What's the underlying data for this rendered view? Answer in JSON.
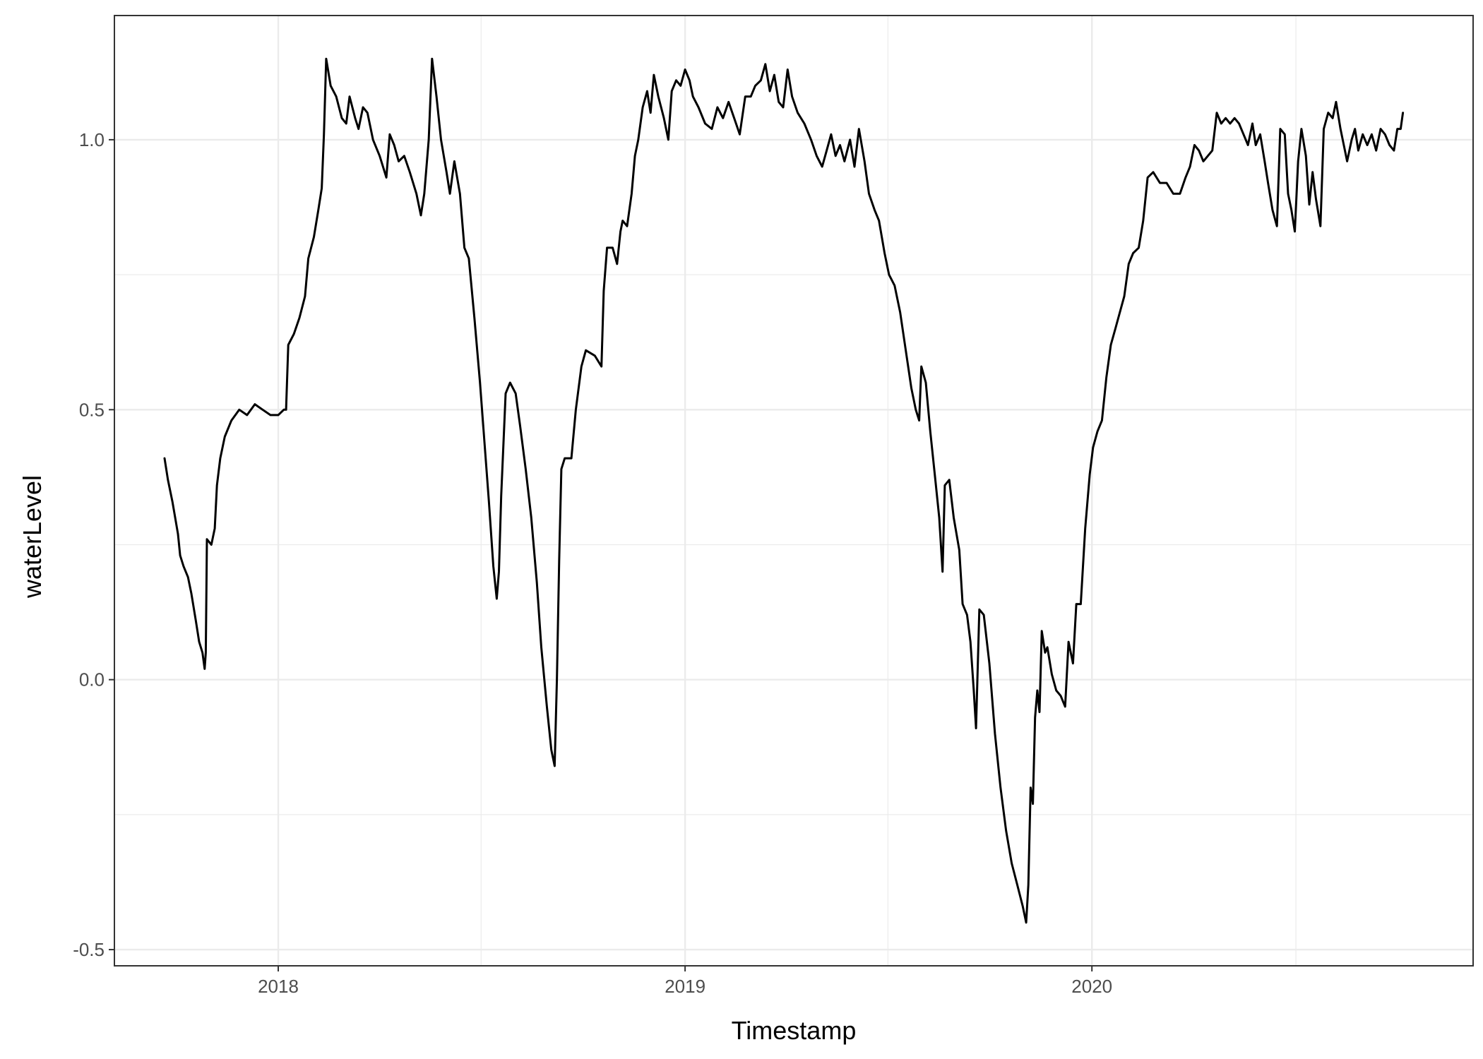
{
  "chart_data": {
    "type": "line",
    "xlabel": "Timestamp",
    "ylabel": "waterLevel",
    "x_ticks": [
      "2018",
      "2019",
      "2020"
    ],
    "y_ticks": [
      "-0.5",
      "0.0",
      "0.5",
      "1.0"
    ],
    "xlim": [
      "2017-08-07",
      "2020-12-08"
    ],
    "ylim": [
      -0.53,
      1.23
    ],
    "grid": true,
    "colors": {
      "line": "#000000",
      "grid": "#ebebeb",
      "border": "#333333"
    },
    "series": [
      {
        "points": [
          [
            "2017-09-21",
            0.41
          ],
          [
            "2017-09-24",
            0.37
          ],
          [
            "2017-09-28",
            0.33
          ],
          [
            "2017-10-03",
            0.27
          ],
          [
            "2017-10-05",
            0.23
          ],
          [
            "2017-10-08",
            0.21
          ],
          [
            "2017-10-12",
            0.19
          ],
          [
            "2017-10-15",
            0.16
          ],
          [
            "2017-10-19",
            0.11
          ],
          [
            "2017-10-22",
            0.07
          ],
          [
            "2017-10-25",
            0.05
          ],
          [
            "2017-10-27",
            0.02
          ],
          [
            "2017-10-28",
            0.05
          ],
          [
            "2017-10-29",
            0.26
          ],
          [
            "2017-11-02",
            0.25
          ],
          [
            "2017-11-05",
            0.28
          ],
          [
            "2017-11-07",
            0.36
          ],
          [
            "2017-11-10",
            0.41
          ],
          [
            "2017-11-14",
            0.45
          ],
          [
            "2017-11-20",
            0.48
          ],
          [
            "2017-11-27",
            0.5
          ],
          [
            "2017-12-04",
            0.49
          ],
          [
            "2017-12-11",
            0.51
          ],
          [
            "2017-12-18",
            0.5
          ],
          [
            "2017-12-25",
            0.49
          ],
          [
            "2018-01-01",
            0.49
          ],
          [
            "2018-01-06",
            0.5
          ],
          [
            "2018-01-08",
            0.5
          ],
          [
            "2018-01-10",
            0.62
          ],
          [
            "2018-01-15",
            0.64
          ],
          [
            "2018-01-20",
            0.67
          ],
          [
            "2018-01-25",
            0.71
          ],
          [
            "2018-01-28",
            0.78
          ],
          [
            "2018-02-02",
            0.82
          ],
          [
            "2018-02-06",
            0.87
          ],
          [
            "2018-02-09",
            0.91
          ],
          [
            "2018-02-11",
            1.01
          ],
          [
            "2018-02-13",
            1.15
          ],
          [
            "2018-02-17",
            1.1
          ],
          [
            "2018-02-22",
            1.08
          ],
          [
            "2018-02-27",
            1.04
          ],
          [
            "2018-03-03",
            1.03
          ],
          [
            "2018-03-06",
            1.08
          ],
          [
            "2018-03-11",
            1.04
          ],
          [
            "2018-03-14",
            1.02
          ],
          [
            "2018-03-18",
            1.06
          ],
          [
            "2018-03-22",
            1.05
          ],
          [
            "2018-03-27",
            1.0
          ],
          [
            "2018-04-02",
            0.97
          ],
          [
            "2018-04-08",
            0.93
          ],
          [
            "2018-04-11",
            1.01
          ],
          [
            "2018-04-15",
            0.99
          ],
          [
            "2018-04-19",
            0.96
          ],
          [
            "2018-04-24",
            0.97
          ],
          [
            "2018-04-29",
            0.94
          ],
          [
            "2018-05-05",
            0.9
          ],
          [
            "2018-05-09",
            0.86
          ],
          [
            "2018-05-12",
            0.9
          ],
          [
            "2018-05-16",
            1.0
          ],
          [
            "2018-05-19",
            1.15
          ],
          [
            "2018-05-23",
            1.08
          ],
          [
            "2018-05-27",
            1.0
          ],
          [
            "2018-06-01",
            0.94
          ],
          [
            "2018-06-04",
            0.9
          ],
          [
            "2018-06-08",
            0.96
          ],
          [
            "2018-06-13",
            0.9
          ],
          [
            "2018-06-17",
            0.8
          ],
          [
            "2018-06-21",
            0.78
          ],
          [
            "2018-06-26",
            0.67
          ],
          [
            "2018-07-01",
            0.55
          ],
          [
            "2018-07-05",
            0.44
          ],
          [
            "2018-07-09",
            0.33
          ],
          [
            "2018-07-13",
            0.21
          ],
          [
            "2018-07-16",
            0.15
          ],
          [
            "2018-07-18",
            0.2
          ],
          [
            "2018-07-20",
            0.34
          ],
          [
            "2018-07-24",
            0.53
          ],
          [
            "2018-07-28",
            0.55
          ],
          [
            "2018-08-02",
            0.53
          ],
          [
            "2018-08-06",
            0.47
          ],
          [
            "2018-08-11",
            0.39
          ],
          [
            "2018-08-16",
            0.3
          ],
          [
            "2018-08-21",
            0.18
          ],
          [
            "2018-08-25",
            0.06
          ],
          [
            "2018-08-30",
            -0.05
          ],
          [
            "2018-09-03",
            -0.13
          ],
          [
            "2018-09-06",
            -0.16
          ],
          [
            "2018-09-08",
            0.0
          ],
          [
            "2018-09-10",
            0.22
          ],
          [
            "2018-09-12",
            0.39
          ],
          [
            "2018-09-15",
            0.41
          ],
          [
            "2018-09-21",
            0.41
          ],
          [
            "2018-09-25",
            0.5
          ],
          [
            "2018-09-30",
            0.58
          ],
          [
            "2018-10-04",
            0.61
          ],
          [
            "2018-10-12",
            0.6
          ],
          [
            "2018-10-18",
            0.58
          ],
          [
            "2018-10-20",
            0.72
          ],
          [
            "2018-10-23",
            0.8
          ],
          [
            "2018-10-28",
            0.8
          ],
          [
            "2018-11-01",
            0.77
          ],
          [
            "2018-11-04",
            0.83
          ],
          [
            "2018-11-06",
            0.85
          ],
          [
            "2018-11-10",
            0.84
          ],
          [
            "2018-11-14",
            0.9
          ],
          [
            "2018-11-17",
            0.97
          ],
          [
            "2018-11-20",
            1.0
          ],
          [
            "2018-11-24",
            1.06
          ],
          [
            "2018-11-28",
            1.09
          ],
          [
            "2018-12-01",
            1.05
          ],
          [
            "2018-12-04",
            1.12
          ],
          [
            "2018-12-08",
            1.08
          ],
          [
            "2018-12-13",
            1.04
          ],
          [
            "2018-12-17",
            1.0
          ],
          [
            "2018-12-20",
            1.09
          ],
          [
            "2018-12-24",
            1.11
          ],
          [
            "2018-12-28",
            1.1
          ],
          [
            "2019-01-01",
            1.13
          ],
          [
            "2019-01-05",
            1.11
          ],
          [
            "2019-01-08",
            1.08
          ],
          [
            "2019-01-13",
            1.06
          ],
          [
            "2019-01-19",
            1.03
          ],
          [
            "2019-01-25",
            1.02
          ],
          [
            "2019-01-30",
            1.06
          ],
          [
            "2019-02-04",
            1.04
          ],
          [
            "2019-02-09",
            1.07
          ],
          [
            "2019-02-14",
            1.04
          ],
          [
            "2019-02-19",
            1.01
          ],
          [
            "2019-02-24",
            1.08
          ],
          [
            "2019-03-01",
            1.08
          ],
          [
            "2019-03-05",
            1.1
          ],
          [
            "2019-03-10",
            1.11
          ],
          [
            "2019-03-14",
            1.14
          ],
          [
            "2019-03-18",
            1.09
          ],
          [
            "2019-03-22",
            1.12
          ],
          [
            "2019-03-26",
            1.07
          ],
          [
            "2019-03-30",
            1.06
          ],
          [
            "2019-04-03",
            1.13
          ],
          [
            "2019-04-07",
            1.08
          ],
          [
            "2019-04-12",
            1.05
          ],
          [
            "2019-04-18",
            1.03
          ],
          [
            "2019-04-24",
            1.0
          ],
          [
            "2019-04-29",
            0.97
          ],
          [
            "2019-05-04",
            0.95
          ],
          [
            "2019-05-08",
            0.98
          ],
          [
            "2019-05-12",
            1.01
          ],
          [
            "2019-05-16",
            0.97
          ],
          [
            "2019-05-20",
            0.99
          ],
          [
            "2019-05-24",
            0.96
          ],
          [
            "2019-05-29",
            1.0
          ],
          [
            "2019-06-02",
            0.95
          ],
          [
            "2019-06-06",
            1.02
          ],
          [
            "2019-06-11",
            0.96
          ],
          [
            "2019-06-15",
            0.9
          ],
          [
            "2019-06-20",
            0.87
          ],
          [
            "2019-06-24",
            0.85
          ],
          [
            "2019-06-29",
            0.79
          ],
          [
            "2019-07-03",
            0.75
          ],
          [
            "2019-07-08",
            0.73
          ],
          [
            "2019-07-13",
            0.68
          ],
          [
            "2019-07-18",
            0.61
          ],
          [
            "2019-07-23",
            0.54
          ],
          [
            "2019-07-27",
            0.5
          ],
          [
            "2019-07-30",
            0.48
          ],
          [
            "2019-08-01",
            0.58
          ],
          [
            "2019-08-05",
            0.55
          ],
          [
            "2019-08-09",
            0.46
          ],
          [
            "2019-08-13",
            0.38
          ],
          [
            "2019-08-17",
            0.3
          ],
          [
            "2019-08-20",
            0.2
          ],
          [
            "2019-08-22",
            0.36
          ],
          [
            "2019-08-26",
            0.37
          ],
          [
            "2019-08-30",
            0.3
          ],
          [
            "2019-09-04",
            0.24
          ],
          [
            "2019-09-07",
            0.14
          ],
          [
            "2019-09-11",
            0.12
          ],
          [
            "2019-09-14",
            0.07
          ],
          [
            "2019-09-17",
            -0.02
          ],
          [
            "2019-09-19",
            -0.09
          ],
          [
            "2019-09-22",
            0.13
          ],
          [
            "2019-09-26",
            0.12
          ],
          [
            "2019-10-01",
            0.03
          ],
          [
            "2019-10-06",
            -0.1
          ],
          [
            "2019-10-11",
            -0.2
          ],
          [
            "2019-10-16",
            -0.28
          ],
          [
            "2019-10-21",
            -0.34
          ],
          [
            "2019-10-26",
            -0.38
          ],
          [
            "2019-10-31",
            -0.42
          ],
          [
            "2019-11-03",
            -0.45
          ],
          [
            "2019-11-05",
            -0.38
          ],
          [
            "2019-11-07",
            -0.2
          ],
          [
            "2019-11-09",
            -0.23
          ],
          [
            "2019-11-11",
            -0.07
          ],
          [
            "2019-11-13",
            -0.02
          ],
          [
            "2019-11-15",
            -0.06
          ],
          [
            "2019-11-17",
            0.09
          ],
          [
            "2019-11-20",
            0.05
          ],
          [
            "2019-11-22",
            0.06
          ],
          [
            "2019-11-26",
            0.01
          ],
          [
            "2019-11-30",
            -0.02
          ],
          [
            "2019-12-04",
            -0.03
          ],
          [
            "2019-12-08",
            -0.05
          ],
          [
            "2019-12-11",
            0.07
          ],
          [
            "2019-12-15",
            0.03
          ],
          [
            "2019-12-18",
            0.14
          ],
          [
            "2019-12-22",
            0.14
          ],
          [
            "2019-12-26",
            0.28
          ],
          [
            "2019-12-30",
            0.38
          ],
          [
            "2020-01-02",
            0.43
          ],
          [
            "2020-01-06",
            0.46
          ],
          [
            "2020-01-10",
            0.48
          ],
          [
            "2020-01-14",
            0.56
          ],
          [
            "2020-01-18",
            0.62
          ],
          [
            "2020-01-22",
            0.65
          ],
          [
            "2020-01-26",
            0.68
          ],
          [
            "2020-01-30",
            0.71
          ],
          [
            "2020-02-03",
            0.77
          ],
          [
            "2020-02-07",
            0.79
          ],
          [
            "2020-02-12",
            0.8
          ],
          [
            "2020-02-16",
            0.85
          ],
          [
            "2020-02-20",
            0.93
          ],
          [
            "2020-02-25",
            0.94
          ],
          [
            "2020-03-02",
            0.92
          ],
          [
            "2020-03-08",
            0.92
          ],
          [
            "2020-03-14",
            0.9
          ],
          [
            "2020-03-20",
            0.9
          ],
          [
            "2020-03-25",
            0.93
          ],
          [
            "2020-03-29",
            0.95
          ],
          [
            "2020-04-02",
            0.99
          ],
          [
            "2020-04-06",
            0.98
          ],
          [
            "2020-04-10",
            0.96
          ],
          [
            "2020-04-14",
            0.97
          ],
          [
            "2020-04-18",
            0.98
          ],
          [
            "2020-04-22",
            1.05
          ],
          [
            "2020-04-26",
            1.03
          ],
          [
            "2020-04-30",
            1.04
          ],
          [
            "2020-05-04",
            1.03
          ],
          [
            "2020-05-08",
            1.04
          ],
          [
            "2020-05-12",
            1.03
          ],
          [
            "2020-05-16",
            1.01
          ],
          [
            "2020-05-20",
            0.99
          ],
          [
            "2020-05-24",
            1.03
          ],
          [
            "2020-05-27",
            0.99
          ],
          [
            "2020-05-31",
            1.01
          ],
          [
            "2020-06-04",
            0.96
          ],
          [
            "2020-06-07",
            0.92
          ],
          [
            "2020-06-11",
            0.87
          ],
          [
            "2020-06-15",
            0.84
          ],
          [
            "2020-06-18",
            1.02
          ],
          [
            "2020-06-22",
            1.01
          ],
          [
            "2020-06-25",
            0.9
          ],
          [
            "2020-06-28",
            0.87
          ],
          [
            "2020-07-01",
            0.83
          ],
          [
            "2020-07-04",
            0.96
          ],
          [
            "2020-07-07",
            1.02
          ],
          [
            "2020-07-11",
            0.97
          ],
          [
            "2020-07-14",
            0.88
          ],
          [
            "2020-07-17",
            0.94
          ],
          [
            "2020-07-20",
            0.89
          ],
          [
            "2020-07-24",
            0.84
          ],
          [
            "2020-07-27",
            1.02
          ],
          [
            "2020-07-31",
            1.05
          ],
          [
            "2020-08-04",
            1.04
          ],
          [
            "2020-08-07",
            1.07
          ],
          [
            "2020-08-11",
            1.02
          ],
          [
            "2020-08-14",
            0.99
          ],
          [
            "2020-08-17",
            0.96
          ],
          [
            "2020-08-21",
            1.0
          ],
          [
            "2020-08-24",
            1.02
          ],
          [
            "2020-08-27",
            0.98
          ],
          [
            "2020-08-31",
            1.01
          ],
          [
            "2020-09-04",
            0.99
          ],
          [
            "2020-09-08",
            1.01
          ],
          [
            "2020-09-12",
            0.98
          ],
          [
            "2020-09-16",
            1.02
          ],
          [
            "2020-09-20",
            1.01
          ],
          [
            "2020-09-24",
            0.99
          ],
          [
            "2020-09-28",
            0.98
          ],
          [
            "2020-10-01",
            1.02
          ],
          [
            "2020-10-04",
            1.02
          ],
          [
            "2020-10-06",
            1.05
          ]
        ]
      }
    ]
  }
}
